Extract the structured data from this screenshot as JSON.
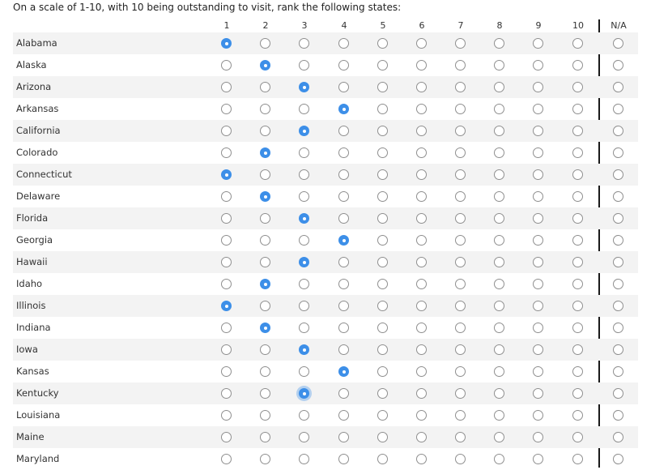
{
  "question": "On a scale of 1-10, with 10 being outstanding to visit, rank the following states:",
  "columns": [
    "1",
    "2",
    "3",
    "4",
    "5",
    "6",
    "7",
    "8",
    "9",
    "10",
    "N/A"
  ],
  "rows": [
    {
      "label": "Alabama",
      "selected": "1"
    },
    {
      "label": "Alaska",
      "selected": "2"
    },
    {
      "label": "Arizona",
      "selected": "3"
    },
    {
      "label": "Arkansas",
      "selected": "4"
    },
    {
      "label": "California",
      "selected": "3"
    },
    {
      "label": "Colorado",
      "selected": "2"
    },
    {
      "label": "Connecticut",
      "selected": "1"
    },
    {
      "label": "Delaware",
      "selected": "2"
    },
    {
      "label": "Florida",
      "selected": "3"
    },
    {
      "label": "Georgia",
      "selected": "4"
    },
    {
      "label": "Hawaii",
      "selected": "3"
    },
    {
      "label": "Idaho",
      "selected": "2"
    },
    {
      "label": "Illinois",
      "selected": "1"
    },
    {
      "label": "Indiana",
      "selected": "2"
    },
    {
      "label": "Iowa",
      "selected": "3"
    },
    {
      "label": "Kansas",
      "selected": "4"
    },
    {
      "label": "Kentucky",
      "selected": "3",
      "focused": true
    },
    {
      "label": "Louisiana",
      "selected": null
    },
    {
      "label": "Maine",
      "selected": null
    },
    {
      "label": "Maryland",
      "selected": null
    }
  ],
  "colors": {
    "accent": "#3d8fe8",
    "row_shade": "#f3f3f3",
    "divider": "#1a1a1a"
  }
}
